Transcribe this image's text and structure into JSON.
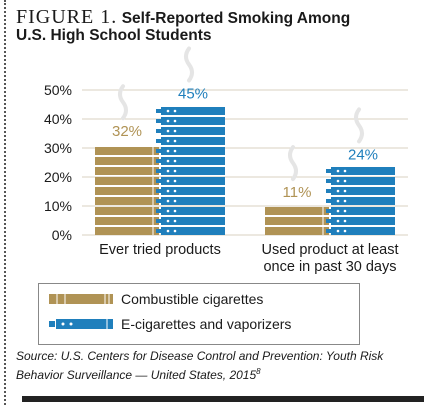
{
  "figure_label": "FIGURE 1.",
  "title_line1": "Self-Reported Smoking Among",
  "title_line2": "U.S. High School Students",
  "source_text": "Source: U.S. Centers for Disease Control and Prevention: Youth Risk Behavior Surveillance — United States, 2015",
  "source_footnote": "8",
  "colors": {
    "combustible": "#b09355",
    "ecig": "#1f7fbc",
    "combustible_label": "#b09355",
    "ecig_label": "#1f7fbc",
    "grid": "#d8d2c0"
  },
  "icons": {
    "combustible": "cigarette-icon",
    "ecig": "e-cigarette-icon"
  },
  "chart_data": {
    "type": "bar",
    "categories": [
      "Ever tried products",
      "Used product at least once in past 30 days"
    ],
    "category_lines": [
      [
        "Ever tried products"
      ],
      [
        "Used product at least",
        "once in past 30 days"
      ]
    ],
    "series": [
      {
        "name": "Combustible cigarettes",
        "values": [
          32,
          11
        ],
        "labels": [
          "32%",
          "11%"
        ]
      },
      {
        "name": "E-cigarettes and vaporizers",
        "values": [
          45,
          24
        ],
        "labels": [
          "45%",
          "24%"
        ]
      }
    ],
    "yticks": [
      "0%",
      "10%",
      "20%",
      "30%",
      "40%",
      "50%"
    ],
    "ylim": [
      0,
      50
    ],
    "grid": true,
    "legend_position": "bottom"
  }
}
